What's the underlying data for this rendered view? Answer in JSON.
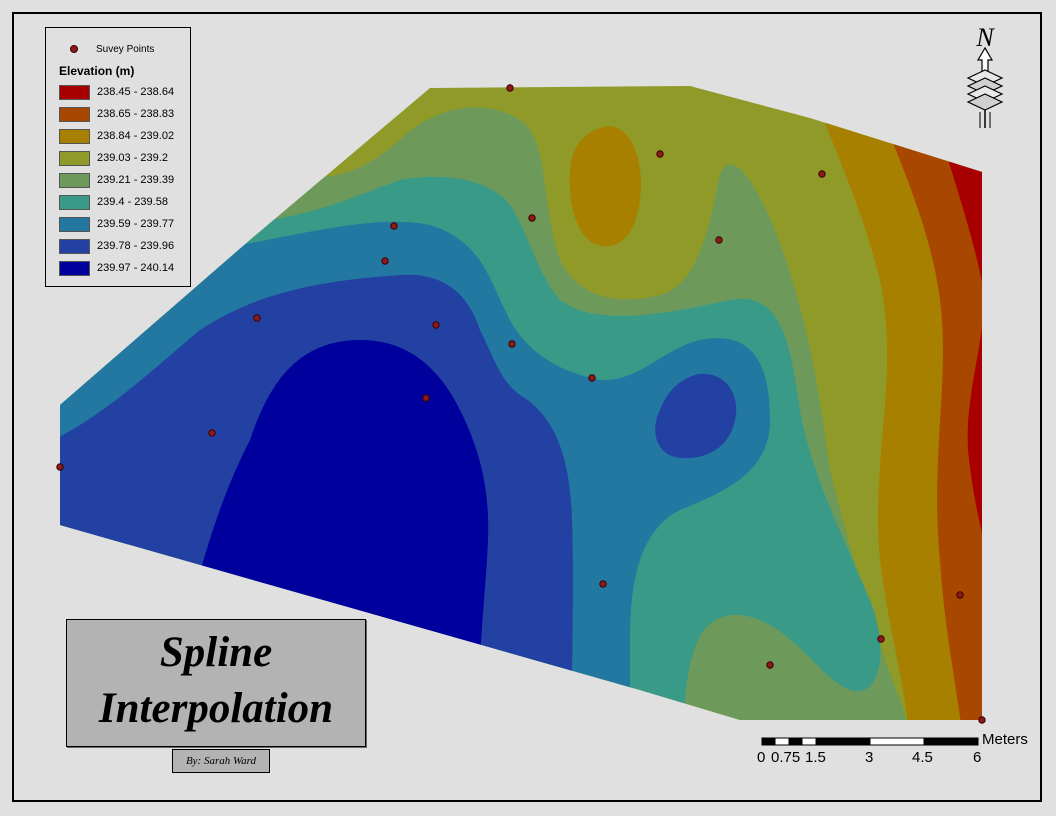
{
  "legend": {
    "points_label": "Suvey Points",
    "title": "Elevation (m)",
    "classes": [
      {
        "label": "238.45 - 238.64",
        "color": "#a80000"
      },
      {
        "label": "238.65 - 238.83",
        "color": "#a84800"
      },
      {
        "label": "238.84 - 239.02",
        "color": "#a88000"
      },
      {
        "label": "239.03 - 239.2",
        "color": "#8f9a28"
      },
      {
        "label": "239.21 - 239.39",
        "color": "#6d9a5a"
      },
      {
        "label": "239.4 - 239.58",
        "color": "#3a9a88"
      },
      {
        "label": "239.59 - 239.77",
        "color": "#2278a0"
      },
      {
        "label": "239.78 - 239.96",
        "color": "#2341a3"
      },
      {
        "label": "239.97 - 240.14",
        "color": "#00009c"
      }
    ]
  },
  "title": {
    "line1": "Spline",
    "line2": "Interpolation"
  },
  "author": "By: Sarah Ward",
  "north_arrow": {
    "letter": "N"
  },
  "scale_bar": {
    "unit": "Meters",
    "labels": [
      "0",
      "0.75",
      "1.5",
      "3",
      "4.5",
      "6"
    ]
  },
  "colors": {
    "background": "#e0e0e0",
    "point_fill": "#8b1a1a"
  }
}
